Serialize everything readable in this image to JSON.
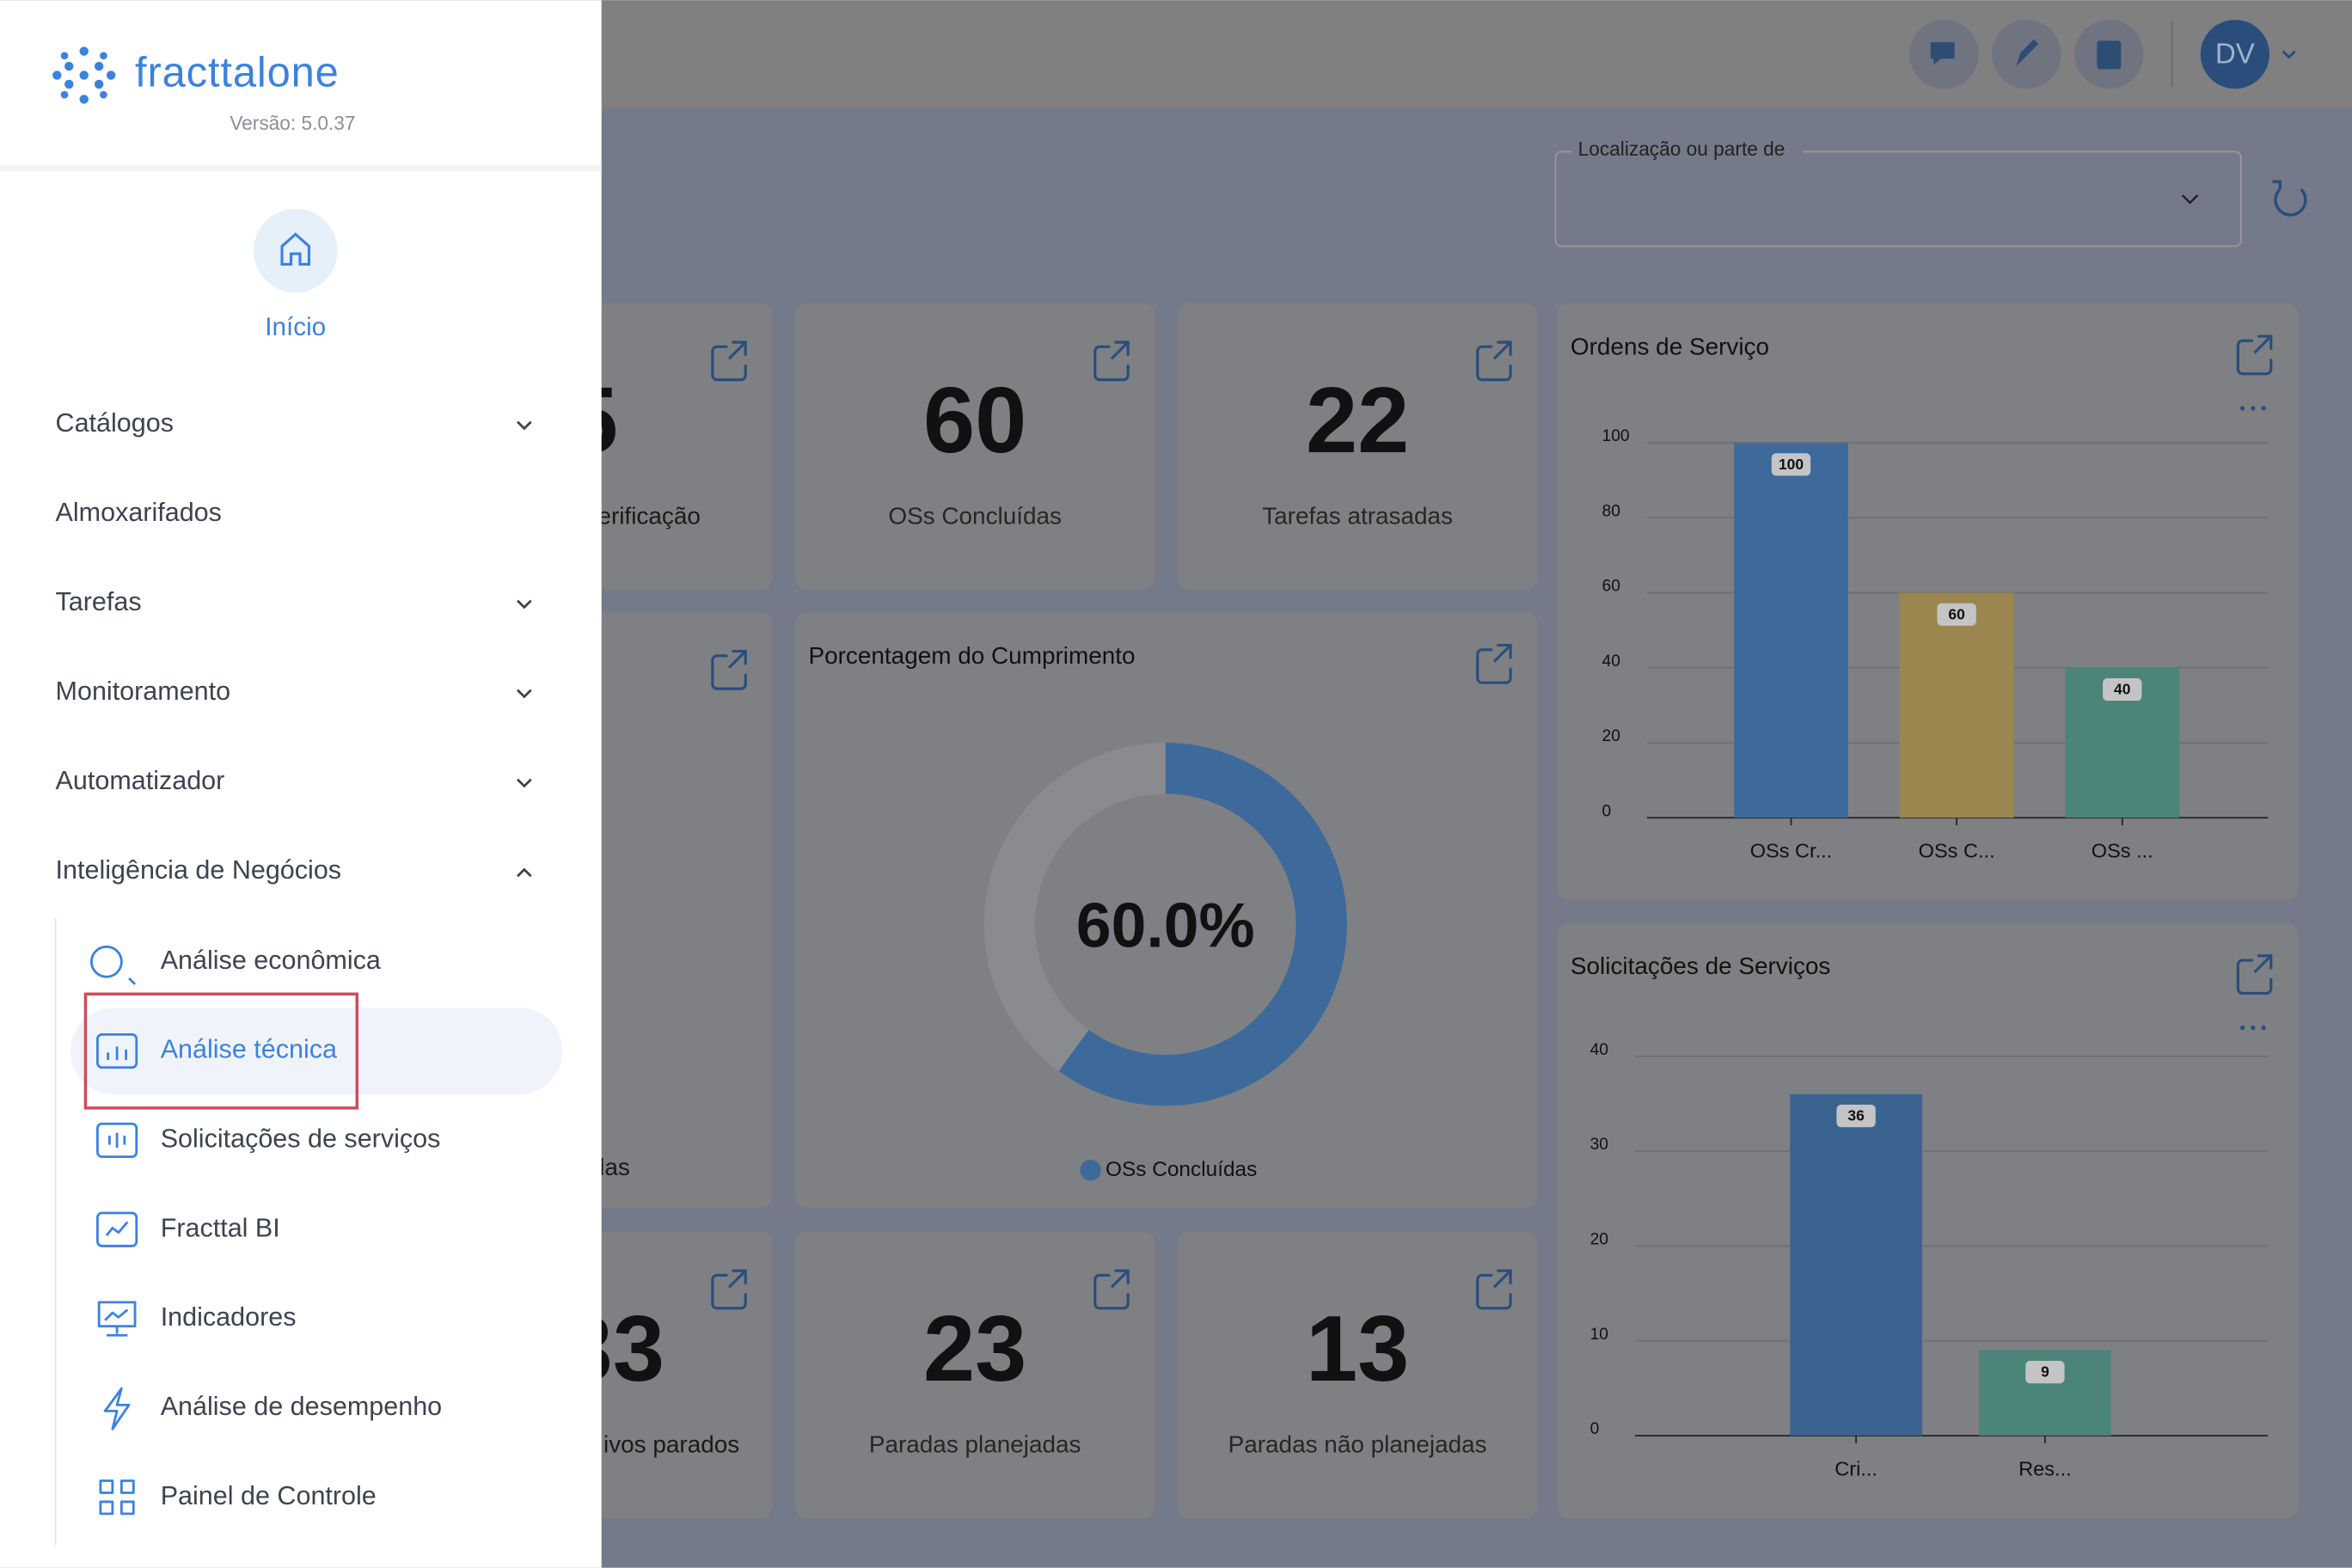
{
  "sidebar": {
    "brand": "fracttalone",
    "version": "Versão: 5.0.37",
    "home": "Início",
    "menu": [
      {
        "label": "Catálogos",
        "expandable": true
      },
      {
        "label": "Almoxarifados",
        "expandable": false
      },
      {
        "label": "Tarefas",
        "expandable": true
      },
      {
        "label": "Monitoramento",
        "expandable": true
      },
      {
        "label": "Automatizador",
        "expandable": true
      },
      {
        "label": "Inteligência de Negócios",
        "expandable": true,
        "expanded": true
      }
    ],
    "submenu": [
      {
        "label": "Análise econômica"
      },
      {
        "label": "Análise técnica",
        "active": true
      },
      {
        "label": "Solicitações de serviços"
      },
      {
        "label": "Fracttal BI"
      },
      {
        "label": "Indicadores"
      },
      {
        "label": "Análise de desempenho"
      },
      {
        "label": "Painel de Controle"
      }
    ]
  },
  "header": {
    "avatar": "DV",
    "location_label": "Localização ou parte de"
  },
  "kpis": [
    {
      "value": "5",
      "label": "erificação"
    },
    {
      "value": 60,
      "label": "OSs Concluídas"
    },
    {
      "value": 22,
      "label": "Tarefas atrasadas"
    },
    {
      "label": "das"
    },
    {
      "value": "33",
      "label": "ivos parados"
    },
    {
      "value": 23,
      "label": "Paradas planejadas"
    },
    {
      "value": 13,
      "label": "Paradas não planejadas"
    }
  ],
  "chart_data": [
    {
      "type": "bar",
      "title": "Ordens de Serviço",
      "categories": [
        "OSs Cr...",
        "OSs C...",
        "OSs ..."
      ],
      "values": [
        100,
        60,
        40
      ],
      "colors": [
        "#3d6a9a",
        "#9b8650",
        "#4b8479"
      ],
      "ylim": [
        0,
        100
      ],
      "yticks": [
        0,
        20,
        40,
        60,
        80,
        100
      ],
      "grid": true
    },
    {
      "type": "donut",
      "title": "Porcentagem do Cumprimento",
      "categories": [
        "OSs Concluídas"
      ],
      "values": [
        60
      ],
      "value_labels": [
        "60.0%"
      ],
      "colors": [
        "#3d6a9a"
      ],
      "track_color": "#8a8b8e"
    },
    {
      "type": "bar",
      "title": "Solicitações de Serviços",
      "categories": [
        "Cri...",
        "Res..."
      ],
      "values": [
        36,
        9
      ],
      "colors": [
        "#3a6390",
        "#4b8479"
      ],
      "ylim": [
        0,
        40
      ],
      "yticks": [
        0,
        10,
        20,
        30,
        40
      ],
      "grid": true
    }
  ]
}
